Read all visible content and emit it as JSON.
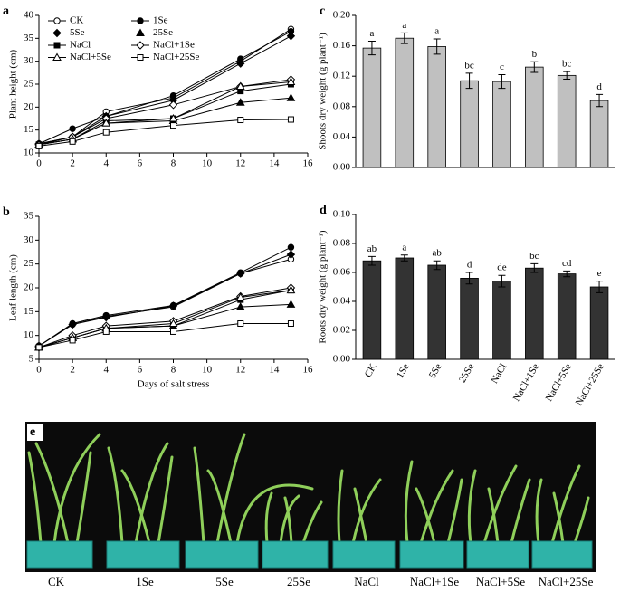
{
  "chart_data": [
    {
      "type": "line",
      "panel": "a",
      "ylabel": "Plant height (cm)",
      "x": [
        0,
        2,
        4,
        8,
        12,
        15
      ],
      "xlim": [
        0,
        16
      ],
      "xticks": [
        0,
        2,
        4,
        6,
        8,
        10,
        12,
        14,
        16
      ],
      "ylim": [
        10,
        40
      ],
      "yticks": [
        10,
        15,
        20,
        25,
        30,
        35,
        40
      ],
      "legend": "upper left",
      "series": [
        {
          "name": "CK",
          "marker": "circle-open",
          "color": "#000",
          "values": [
            12,
            13.5,
            19,
            22,
            30,
            37
          ]
        },
        {
          "name": "1Se",
          "marker": "circle",
          "color": "#000",
          "values": [
            12,
            15.3,
            18,
            22.5,
            30.5,
            36.5
          ]
        },
        {
          "name": "5Se",
          "marker": "diamond",
          "color": "#000",
          "values": [
            12,
            13.5,
            18,
            21.5,
            29.5,
            35.5
          ]
        },
        {
          "name": "25Se",
          "marker": "triangle",
          "color": "#000",
          "values": [
            11.8,
            13,
            16.5,
            17,
            21,
            22
          ]
        },
        {
          "name": "NaCl",
          "marker": "square",
          "color": "#000",
          "values": [
            11.8,
            13,
            17,
            17.5,
            23.5,
            25
          ]
        },
        {
          "name": "NaCl+1Se",
          "marker": "diamond-open",
          "color": "#000",
          "values": [
            11.8,
            13.5,
            17.5,
            20.5,
            24.5,
            26
          ]
        },
        {
          "name": "NaCl+5Se",
          "marker": "triangle-open",
          "color": "#000",
          "values": [
            11.8,
            13,
            16.5,
            17.5,
            24.5,
            25.5
          ]
        },
        {
          "name": "NaCl+25Se",
          "marker": "square-open",
          "color": "#000",
          "values": [
            11.5,
            12.5,
            14.5,
            16,
            17.2,
            17.3
          ]
        }
      ]
    },
    {
      "type": "line",
      "panel": "b",
      "ylabel": "Leaf length (cm)",
      "xlabel": "Days of salt stress",
      "x": [
        0,
        2,
        4,
        8,
        12,
        15
      ],
      "xlim": [
        0,
        16
      ],
      "xticks": [
        0,
        2,
        4,
        6,
        8,
        10,
        12,
        14,
        16
      ],
      "ylim": [
        5,
        35
      ],
      "yticks": [
        5,
        10,
        15,
        20,
        25,
        30,
        35
      ],
      "series": [
        {
          "marker": "circle-open",
          "color": "#000",
          "values": [
            7.8,
            12.3,
            14,
            16,
            23,
            26
          ]
        },
        {
          "marker": "circle",
          "color": "#000",
          "values": [
            7.8,
            12.5,
            14.2,
            16.3,
            23.2,
            28.5
          ]
        },
        {
          "marker": "diamond",
          "color": "#000",
          "values": [
            7.8,
            12.3,
            13.8,
            16.2,
            23,
            27
          ]
        },
        {
          "marker": "triangle",
          "color": "#000",
          "values": [
            7.5,
            9.5,
            11.5,
            12,
            16,
            16.5
          ]
        },
        {
          "marker": "square",
          "color": "#000",
          "values": [
            7.5,
            9.5,
            11.5,
            12,
            17.5,
            19.5
          ]
        },
        {
          "marker": "diamond-open",
          "color": "#000",
          "values": [
            7.5,
            10,
            12,
            13,
            18.2,
            20
          ]
        },
        {
          "marker": "triangle-open",
          "color": "#000",
          "values": [
            7.5,
            9.5,
            11.5,
            12.5,
            18,
            19.5
          ]
        },
        {
          "marker": "square-open",
          "color": "#000",
          "values": [
            7.5,
            9,
            10.8,
            10.8,
            12.5,
            12.5
          ]
        }
      ]
    },
    {
      "type": "bar",
      "panel": "c",
      "ylabel": "Shoots dry weight (g plant⁻¹)",
      "color": "#c0c0c0",
      "categories": [
        null,
        null,
        null,
        null,
        null,
        null,
        null,
        null
      ],
      "values": [
        0.157,
        0.17,
        0.159,
        0.114,
        0.113,
        0.132,
        0.121,
        0.088
      ],
      "errors": [
        0.009,
        0.007,
        0.01,
        0.01,
        0.009,
        0.007,
        0.005,
        0.008
      ],
      "letters": [
        "a",
        "a",
        "a",
        "bc",
        "c",
        "b",
        "bc",
        "d"
      ],
      "ylim": [
        0,
        0.2
      ],
      "yticks": [
        {
          "value": 0,
          "label": "0.00"
        },
        {
          "value": 0.04,
          "label": "0.04"
        },
        {
          "value": 0.08,
          "label": "0.08"
        },
        {
          "value": 0.12,
          "label": "0.12"
        },
        {
          "value": 0.16,
          "label": "0.16"
        },
        {
          "value": 0.2,
          "label": "0.20"
        }
      ]
    },
    {
      "type": "bar",
      "panel": "d",
      "ylabel": "Roots dry weight (g plant⁻¹)",
      "color": "#333333",
      "categories": [
        "CK",
        "1Se",
        "5Se",
        "25Se",
        "NaCl",
        "NaCl+1Se",
        "NaCl+5Se",
        "NaCl+25Se"
      ],
      "values": [
        0.068,
        0.07,
        0.065,
        0.056,
        0.054,
        0.063,
        0.059,
        0.05
      ],
      "errors": [
        0.003,
        0.002,
        0.003,
        0.004,
        0.004,
        0.003,
        0.002,
        0.004
      ],
      "letters": [
        "ab",
        "a",
        "ab",
        "d",
        "de",
        "bc",
        "cd",
        "e"
      ],
      "ylim": [
        0,
        0.1
      ],
      "yticks": [
        {
          "value": 0,
          "label": "0.00"
        },
        {
          "value": 0.02,
          "label": "0.02"
        },
        {
          "value": 0.04,
          "label": "0.04"
        },
        {
          "value": 0.06,
          "label": "0.06"
        },
        {
          "value": 0.08,
          "label": "0.08"
        },
        {
          "value": 0.1,
          "label": "0.10"
        }
      ]
    }
  ],
  "photo": {
    "panel": "e",
    "labels": [
      "CK",
      "1Se",
      "5Se",
      "25Se",
      "NaCl",
      "NaCl+1Se",
      "NaCl+5Se",
      "NaCl+25Se"
    ]
  }
}
